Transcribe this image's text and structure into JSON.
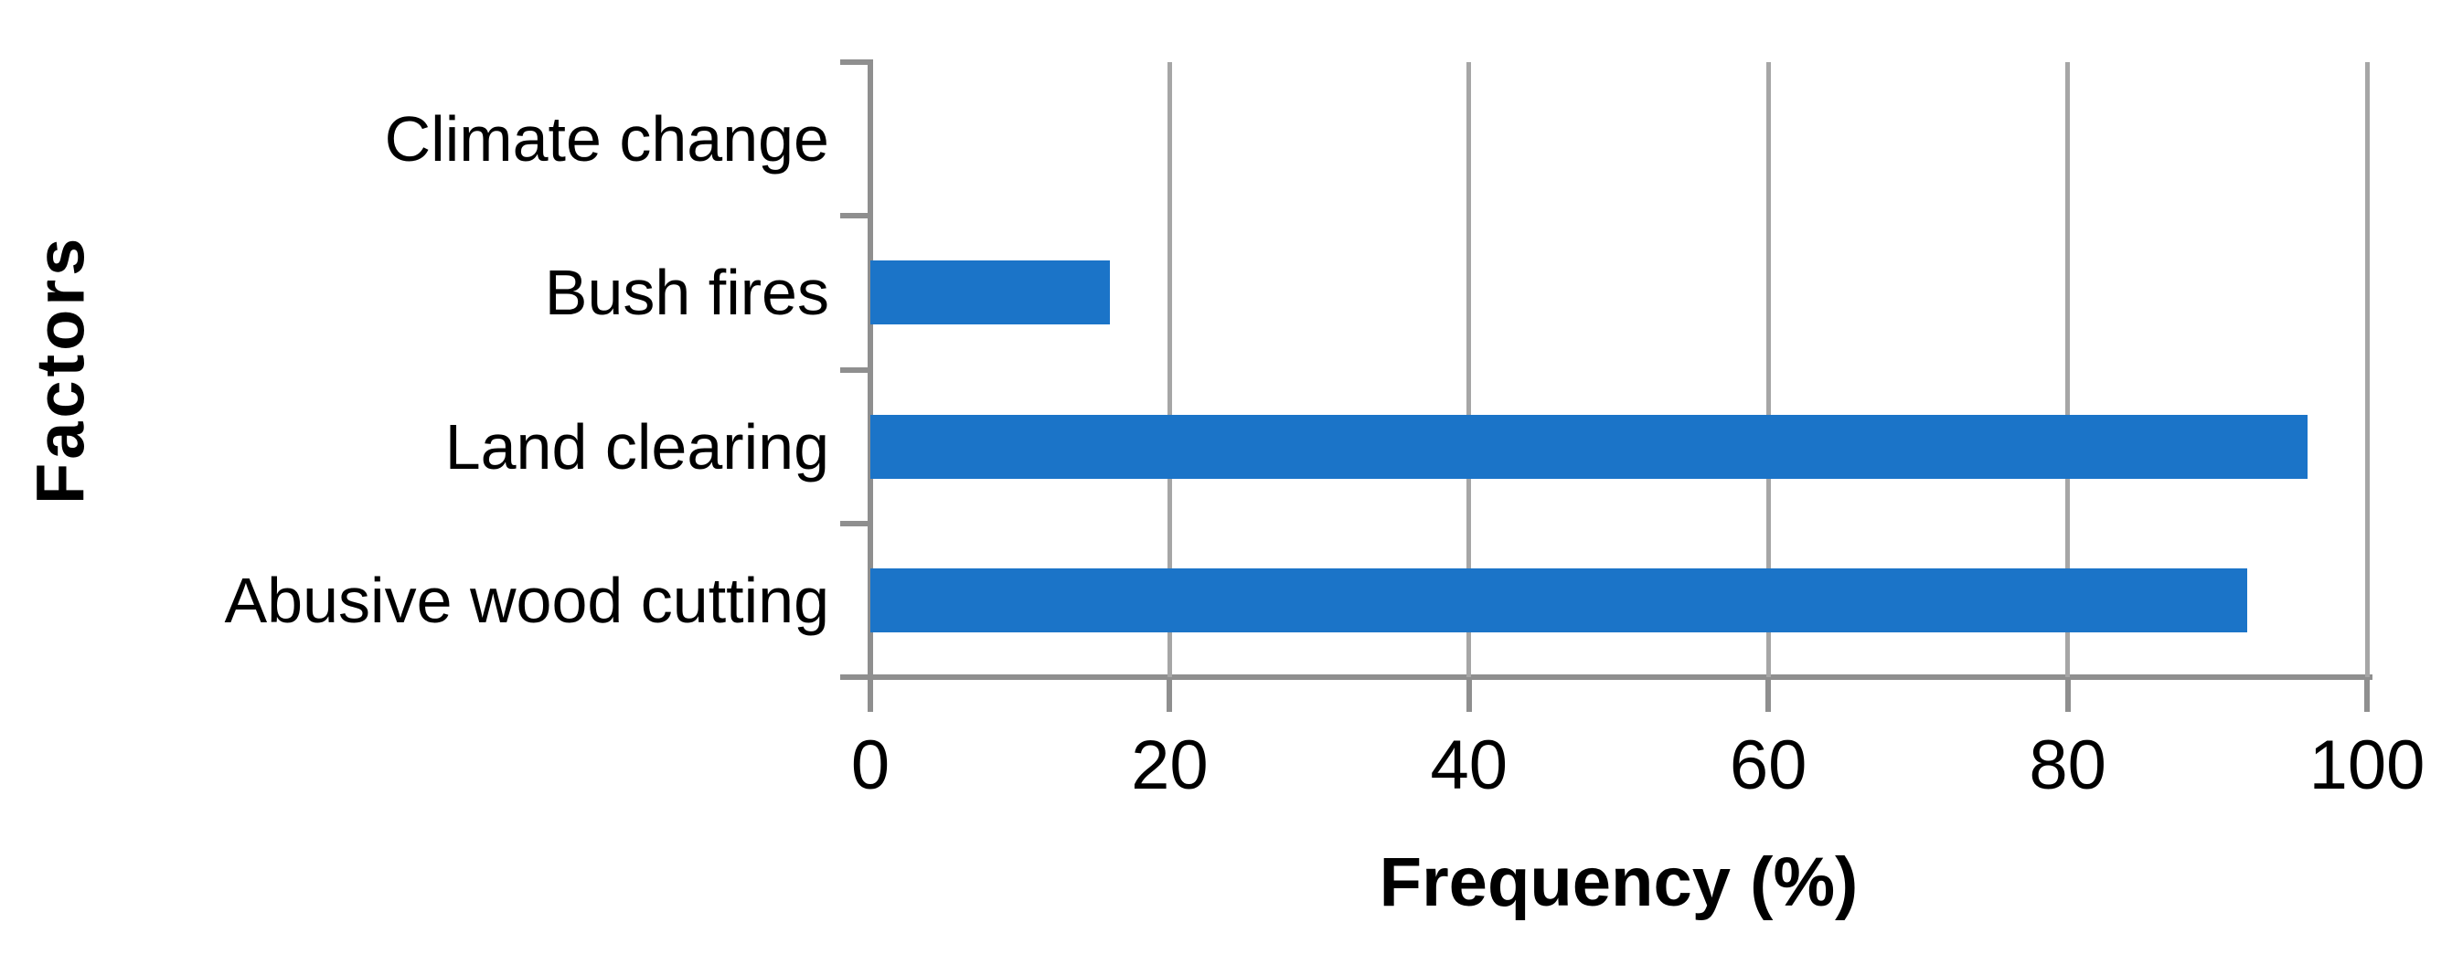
{
  "chart_data": {
    "type": "bar",
    "orientation": "horizontal",
    "title": "",
    "categories": [
      "Climate change",
      "Bush fires",
      "Land clearing",
      "Abusive wood cutting"
    ],
    "values": [
      0,
      16,
      96,
      92
    ],
    "xlabel": "Frequency (%)",
    "ylabel": "Factors",
    "xlim": [
      0,
      100
    ],
    "xticks": [
      0,
      20,
      40,
      60,
      80,
      100
    ],
    "grid": "vertical-gridlines-on",
    "legend": "none",
    "data_labels": "none",
    "bar_color": "#1b74c8",
    "axis_color": "#8f8f8f",
    "gridline_color": "#a6a6a6",
    "text_color": "#000000"
  }
}
